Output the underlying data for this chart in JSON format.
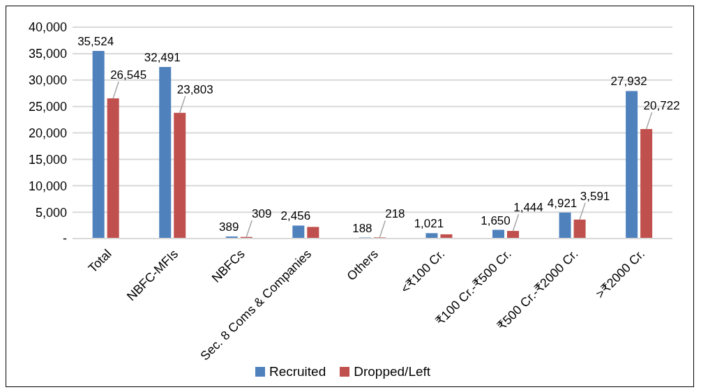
{
  "chart_data": {
    "type": "bar",
    "categories": [
      "Total",
      "NBFC-MFIs",
      "NBFCs",
      "Sec. 8 Coms & Companies",
      "Others",
      "<₹100 Cr.",
      "₹100 Cr.-₹500 Cr.",
      "₹500 Cr.-₹2000 Cr.",
      ">₹2000 Cr."
    ],
    "series": [
      {
        "name": "Recruited",
        "color": "#4f81bd",
        "values": [
          35524,
          32491,
          389,
          2456,
          188,
          1021,
          1650,
          4921,
          27932
        ],
        "value_labels": [
          "35,524",
          "32,491",
          "389",
          "2,456",
          "188",
          "1,021",
          "1,650",
          "4,921",
          "27,932"
        ]
      },
      {
        "name": "Dropped/Left",
        "color": "#c0504d",
        "values": [
          26545,
          23803,
          309,
          2200,
          218,
          800,
          1444,
          3591,
          20722
        ],
        "value_labels": [
          "26,545",
          "23,803",
          "309",
          null,
          "218",
          null,
          "1,444",
          "3,591",
          "20,722"
        ]
      }
    ],
    "ylim": [
      0,
      40000
    ],
    "yticks": [
      {
        "value": 0,
        "label": "-"
      },
      {
        "value": 5000,
        "label": "5,000"
      },
      {
        "value": 10000,
        "label": "10,000"
      },
      {
        "value": 15000,
        "label": "15,000"
      },
      {
        "value": 20000,
        "label": "20,000"
      },
      {
        "value": 25000,
        "label": "25,000"
      },
      {
        "value": 30000,
        "label": "30,000"
      },
      {
        "value": 35000,
        "label": "35,000"
      },
      {
        "value": 40000,
        "label": "40,000"
      }
    ],
    "grid": "y",
    "legend": "bottom"
  }
}
